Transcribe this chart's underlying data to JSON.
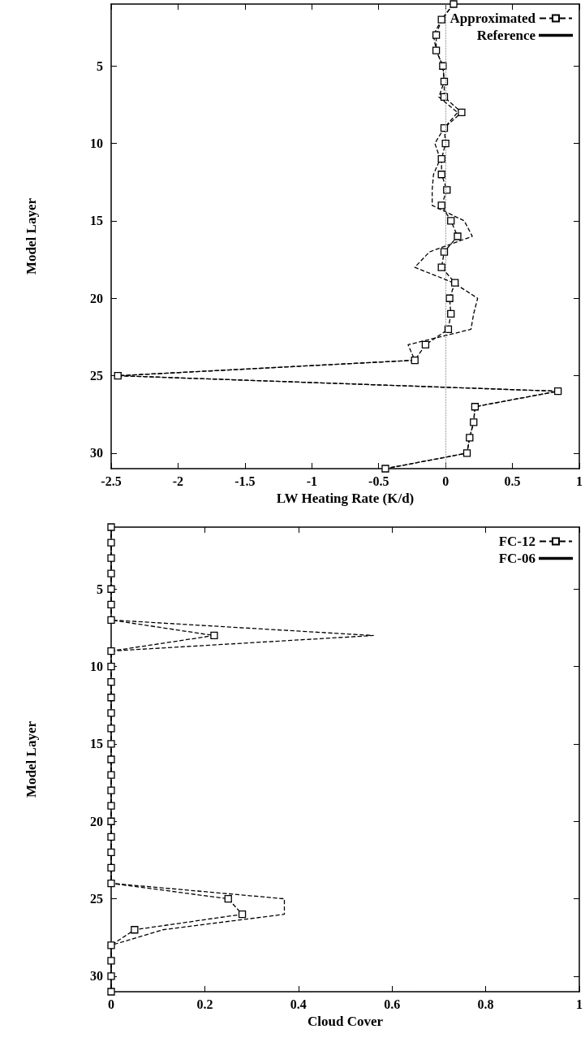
{
  "chart_data": [
    {
      "type": "line",
      "xlabel": "LW Heating Rate (K/d)",
      "ylabel": "Model Layer",
      "xlim": [
        -2.5,
        1
      ],
      "xticks": [
        -2.5,
        -2,
        -1.5,
        -1,
        -0.5,
        0,
        0.5,
        1
      ],
      "ylim": [
        31,
        1
      ],
      "yticks": [
        5,
        10,
        15,
        20,
        25,
        30
      ],
      "legend": "top right",
      "grid": false,
      "line_style": "dashed",
      "ref_lines": [
        {
          "axis": "x",
          "value": 0,
          "line_style": "dotted",
          "color": "#808080"
        }
      ],
      "series": [
        {
          "name": "Approximated",
          "color": "#000000",
          "marker": "square",
          "x": [
            0.06,
            -0.03,
            -0.07,
            -0.07,
            -0.02,
            -0.01,
            -0.01,
            0.12,
            -0.01,
            0,
            -0.03,
            -0.03,
            0.01,
            -0.03,
            0.04,
            0.09,
            -0.01,
            -0.03,
            0.07,
            0.03,
            0.04,
            0.02,
            -0.15,
            -0.23,
            -2.45,
            0.84,
            0.22,
            0.21,
            0.18,
            0.16,
            -0.45
          ],
          "values": [
            1,
            2,
            3,
            4,
            5,
            6,
            7,
            8,
            9,
            10,
            11,
            12,
            13,
            14,
            15,
            16,
            17,
            18,
            19,
            20,
            21,
            22,
            23,
            24,
            25,
            26,
            27,
            28,
            29,
            30,
            31
          ]
        },
        {
          "name": "Reference",
          "color": "#000000",
          "marker": "none",
          "x": [
            0.06,
            -0.03,
            -0.09,
            -0.07,
            -0.02,
            -0.01,
            -0.05,
            0.09,
            -0.01,
            -0.08,
            -0.04,
            -0.09,
            -0.1,
            -0.1,
            0.14,
            0.2,
            -0.12,
            -0.23,
            0.06,
            0.24,
            0.21,
            0.19,
            -0.28,
            -0.23,
            -2.45,
            0.84,
            0.22,
            0.21,
            0.18,
            0.16,
            -0.45
          ],
          "values": [
            1,
            2,
            3,
            4,
            5,
            6,
            7,
            8,
            9,
            10,
            11,
            12,
            13,
            14,
            15,
            16,
            17,
            18,
            19,
            20,
            21,
            22,
            23,
            24,
            25,
            26,
            27,
            28,
            29,
            30,
            31
          ]
        }
      ]
    },
    {
      "type": "line",
      "xlabel": "Cloud Cover",
      "ylabel": "Model Layer",
      "xlim": [
        0,
        1
      ],
      "xticks": [
        0,
        0.2,
        0.4,
        0.6,
        0.8,
        1
      ],
      "ylim": [
        31,
        1
      ],
      "yticks": [
        5,
        10,
        15,
        20,
        25,
        30
      ],
      "legend": "top right",
      "grid": false,
      "line_style": "dashed",
      "series": [
        {
          "name": "FC-12",
          "color": "#000000",
          "marker": "square",
          "x": [
            0,
            0,
            0,
            0,
            0,
            0,
            0,
            0.22,
            0,
            0,
            0,
            0,
            0,
            0,
            0,
            0,
            0,
            0,
            0,
            0,
            0,
            0,
            0,
            0,
            0.25,
            0.28,
            0.05,
            0,
            0,
            0,
            0
          ],
          "values": [
            1,
            2,
            3,
            4,
            5,
            6,
            7,
            8,
            9,
            10,
            11,
            12,
            13,
            14,
            15,
            16,
            17,
            18,
            19,
            20,
            21,
            22,
            23,
            24,
            25,
            26,
            27,
            28,
            29,
            30,
            31
          ]
        },
        {
          "name": "FC-06",
          "color": "#000000",
          "marker": "none",
          "x": [
            0,
            0,
            0,
            0,
            0,
            0,
            0,
            0.56,
            0,
            0,
            0,
            0,
            0,
            0,
            0,
            0,
            0,
            0,
            0,
            0,
            0,
            0,
            0,
            0,
            0.37,
            0.37,
            0.11,
            0,
            0,
            0,
            0
          ],
          "values": [
            1,
            2,
            3,
            4,
            5,
            6,
            7,
            8,
            9,
            10,
            11,
            12,
            13,
            14,
            15,
            16,
            17,
            18,
            19,
            20,
            21,
            22,
            23,
            24,
            25,
            26,
            27,
            28,
            29,
            30,
            31
          ]
        }
      ]
    }
  ]
}
